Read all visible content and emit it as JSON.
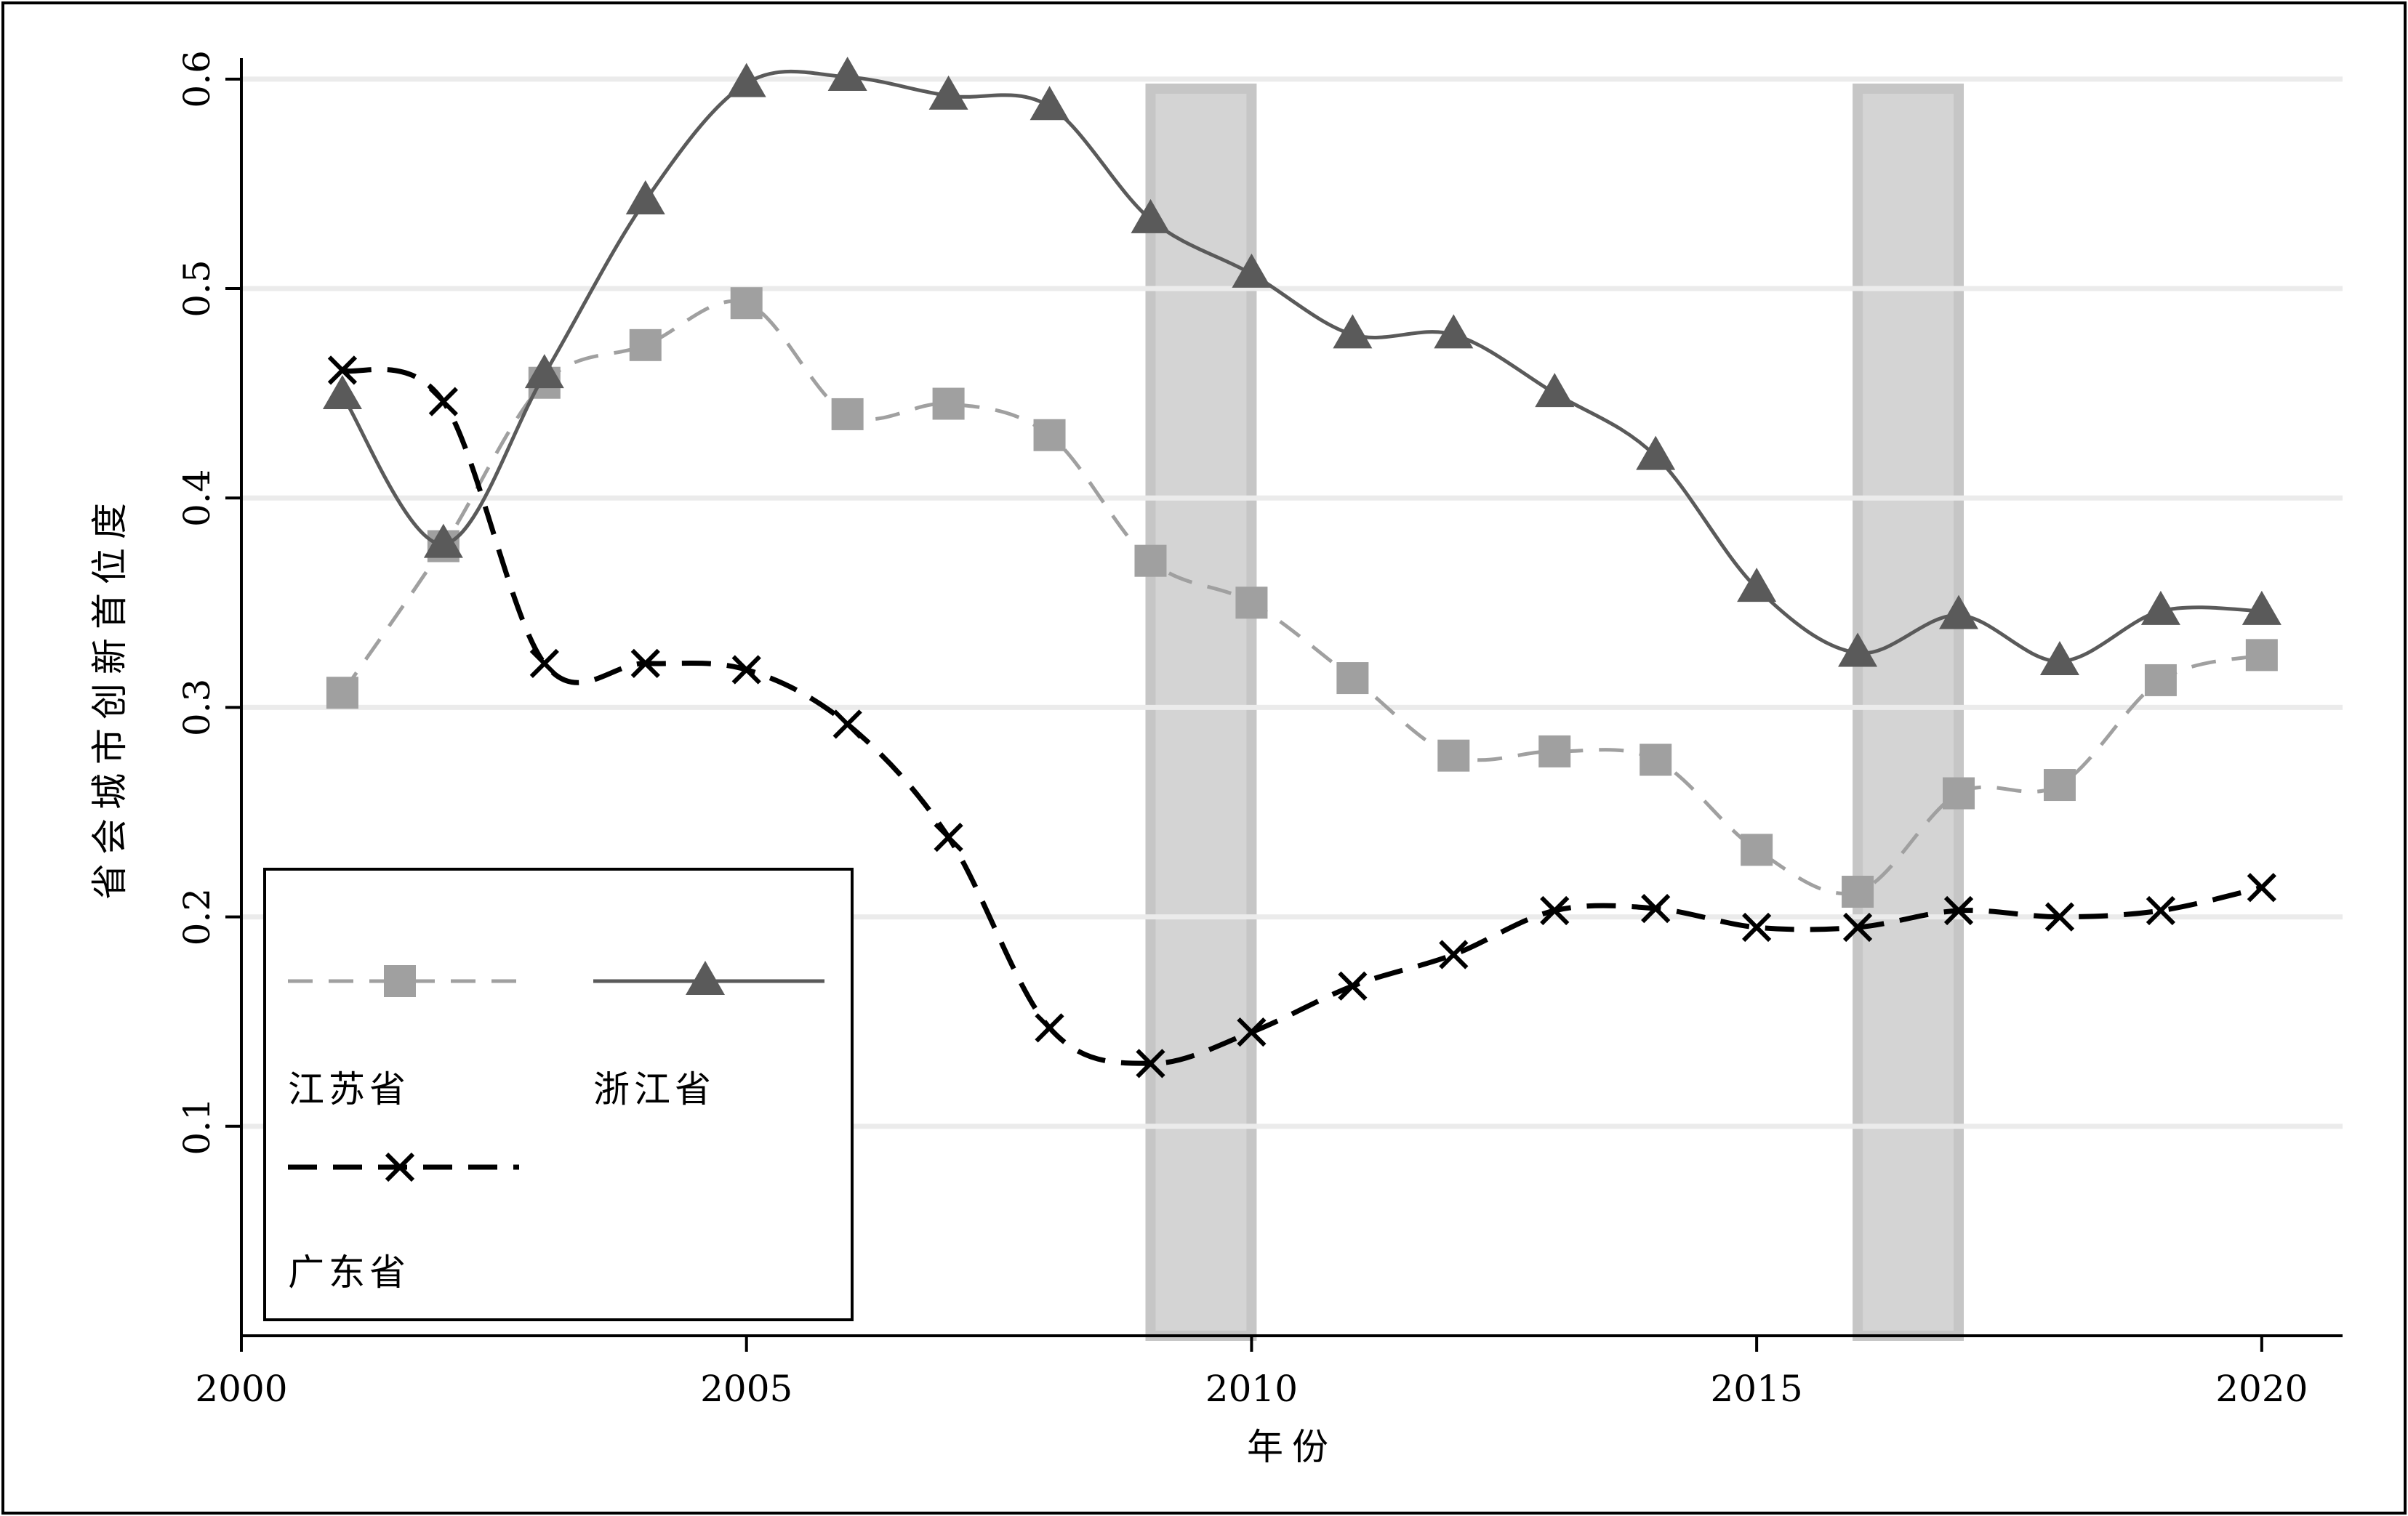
{
  "chart_data": {
    "type": "line",
    "xlabel": "年份",
    "ylabel": "省会城市创新首位度",
    "xlim": [
      2000,
      2020.8
    ],
    "ylim": [
      0,
      0.61
    ],
    "x_ticks": [
      2000,
      2005,
      2010,
      2015,
      2020
    ],
    "y_ticks": [
      0.1,
      0.2,
      0.3,
      0.4,
      0.5,
      0.6
    ],
    "x_tick_labels": [
      "2000",
      "2005",
      "2010",
      "2015",
      "2020"
    ],
    "y_tick_labels": [
      "0.1",
      "0.2",
      "0.3",
      "0.4",
      "0.5",
      "0.6"
    ],
    "grid": "horizontal",
    "legend_position": "bottom-left",
    "shaded_spans": [
      [
        2009,
        2010
      ],
      [
        2016,
        2017
      ]
    ],
    "x": [
      2001,
      2002,
      2003,
      2004,
      2005,
      2006,
      2007,
      2008,
      2009,
      2010,
      2011,
      2012,
      2013,
      2014,
      2015,
      2016,
      2017,
      2018,
      2019,
      2020
    ],
    "series": [
      {
        "name": "江苏省",
        "color": "#a0a0a0",
        "marker": "square",
        "dash": "dashed-light",
        "values": [
          0.307,
          0.377,
          0.455,
          0.473,
          0.493,
          0.44,
          0.445,
          0.43,
          0.37,
          0.35,
          0.314,
          0.277,
          0.279,
          0.275,
          0.232,
          0.212,
          0.259,
          0.263,
          0.313,
          0.325
        ]
      },
      {
        "name": "浙江省",
        "color": "#5a5a5a",
        "marker": "triangle",
        "dash": "solid",
        "values": [
          0.449,
          0.378,
          0.459,
          0.542,
          0.598,
          0.601,
          0.592,
          0.587,
          0.533,
          0.507,
          0.478,
          0.478,
          0.45,
          0.42,
          0.357,
          0.326,
          0.344,
          0.322,
          0.346,
          0.346
        ]
      },
      {
        "name": "广东省",
        "color": "#000000",
        "marker": "x",
        "dash": "dashed",
        "values": [
          0.461,
          0.446,
          0.321,
          0.321,
          0.318,
          0.292,
          0.238,
          0.147,
          0.13,
          0.145,
          0.167,
          0.182,
          0.203,
          0.204,
          0.195,
          0.195,
          0.203,
          0.2,
          0.203,
          0.214
        ]
      }
    ]
  }
}
